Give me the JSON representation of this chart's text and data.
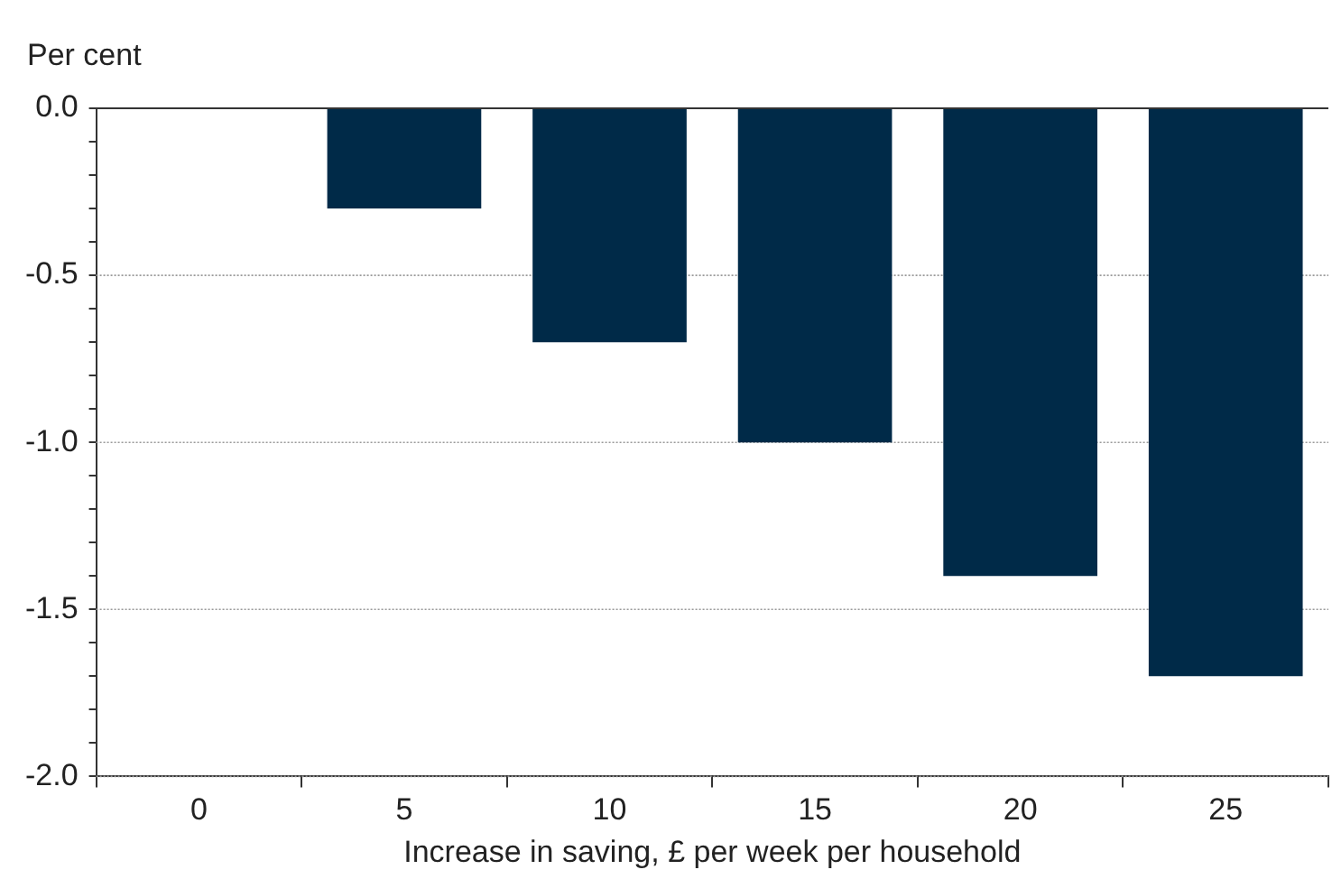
{
  "chart_data": {
    "type": "bar",
    "ylabel": "Per cent",
    "xlabel": "Increase in saving, £ per week per household",
    "categories": [
      "0",
      "5",
      "10",
      "15",
      "20",
      "25"
    ],
    "values": [
      0,
      -0.3,
      -0.7,
      -1.0,
      -1.4,
      -1.7
    ],
    "color": "#002a48",
    "ylim": [
      -2.0,
      0.0
    ],
    "yticks": [
      {
        "value": -2.0,
        "label": "-2.0"
      },
      {
        "value": -1.9,
        "label": null
      },
      {
        "value": -1.8,
        "label": null
      },
      {
        "value": -1.7,
        "label": null
      },
      {
        "value": -1.6,
        "label": null
      },
      {
        "value": -1.5,
        "label": "-1.5"
      },
      {
        "value": -1.4,
        "label": null
      },
      {
        "value": -1.3,
        "label": null
      },
      {
        "value": -1.2,
        "label": null
      },
      {
        "value": -1.1,
        "label": null
      },
      {
        "value": -1.0,
        "label": "-1.0"
      },
      {
        "value": -0.9,
        "label": null
      },
      {
        "value": -0.8,
        "label": null
      },
      {
        "value": -0.7,
        "label": null
      },
      {
        "value": -0.6,
        "label": null
      },
      {
        "value": -0.5,
        "label": "-0.5"
      },
      {
        "value": -0.4,
        "label": null
      },
      {
        "value": -0.3,
        "label": null
      },
      {
        "value": -0.2,
        "label": null
      },
      {
        "value": -0.1,
        "label": null
      },
      {
        "value": 0.0,
        "label": "0.0"
      }
    ],
    "grid": "y",
    "legend": false
  }
}
